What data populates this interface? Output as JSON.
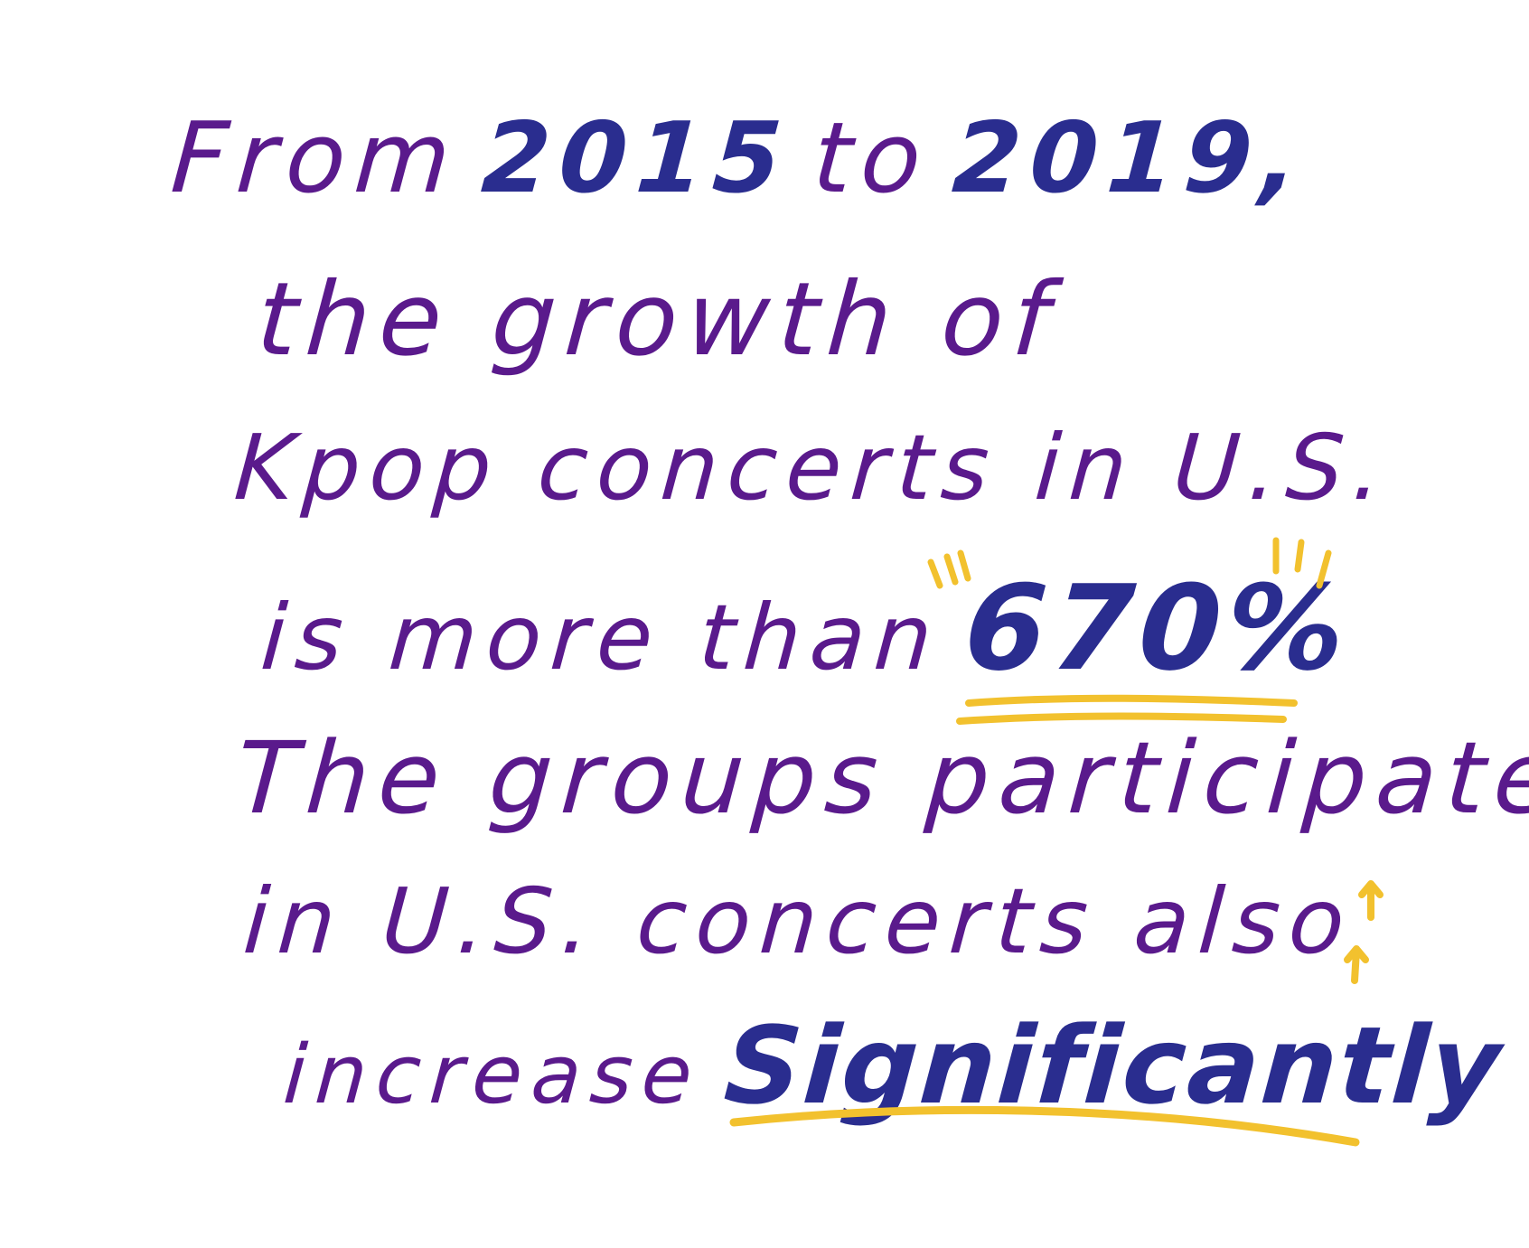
{
  "colors": {
    "text_purple": "#5a1a8c",
    "emphasis_blue": "#2a2d8f",
    "highlight_yellow": "#f2c12e",
    "background": "#ffffff"
  },
  "lines": {
    "l1_a": "From",
    "l1_b": "2015",
    "l1_c": "to",
    "l1_d": "2019,",
    "l2": "the growth of",
    "l3": "Kpop concerts in U.S.",
    "l4_a": "is more than",
    "l4_b": "670%",
    "l5": "The groups participate",
    "l6": "in U.S. concerts also",
    "l7_a": "increase",
    "l7_b": "Significantly"
  },
  "icons": [
    "sparkle-marks-left",
    "sparkle-marks-right",
    "underline-670",
    "underline-significantly",
    "up-arrow-icon"
  ]
}
